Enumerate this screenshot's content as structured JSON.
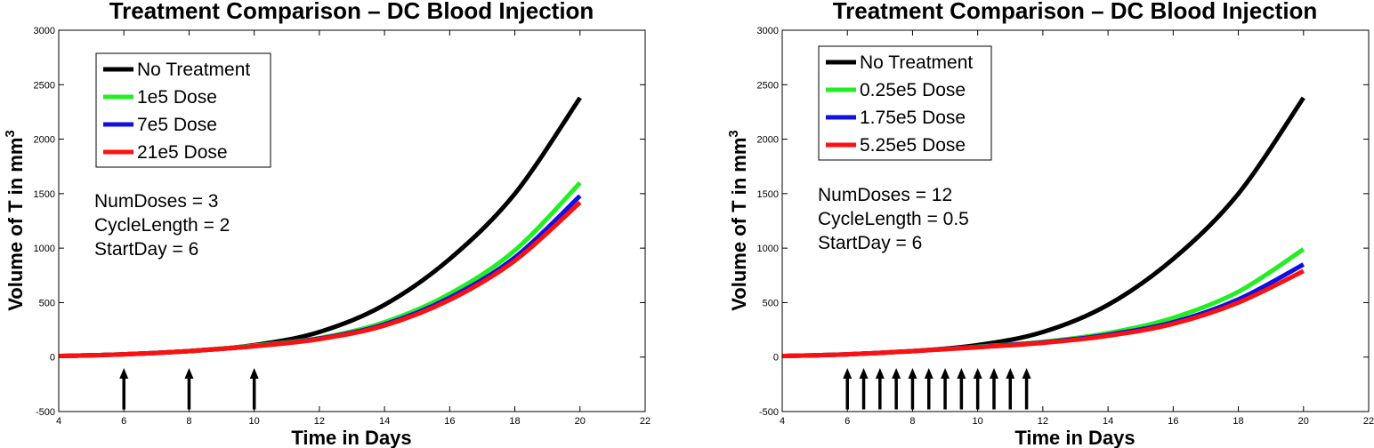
{
  "colors": {
    "black": "#000000",
    "green": "#22ee22",
    "blue": "#1010e0",
    "red": "#ff1010"
  },
  "chart_data": [
    {
      "type": "line",
      "title": "Treatment Comparison – DC Blood Injection",
      "xlabel": "Time in Days",
      "ylabel": "Volume of T in mm",
      "ylabel_superscript": "3",
      "xlim": [
        4,
        22
      ],
      "ylim": [
        -500,
        3000
      ],
      "xticks": [
        4,
        6,
        8,
        10,
        12,
        14,
        16,
        18,
        20,
        22
      ],
      "yticks": [
        -500,
        0,
        500,
        1000,
        1500,
        2000,
        2500,
        3000
      ],
      "legend_position": "top-left",
      "series": [
        {
          "name": "No Treatment",
          "color": "#000000",
          "x": [
            4,
            6,
            8,
            10,
            12,
            14,
            16,
            18,
            20
          ],
          "y": [
            10,
            25,
            55,
            110,
            230,
            480,
            900,
            1500,
            2380
          ]
        },
        {
          "name": "1e5 Dose",
          "color": "#22ee22",
          "x": [
            4,
            6,
            8,
            10,
            12,
            14,
            16,
            18,
            20
          ],
          "y": [
            10,
            25,
            55,
            105,
            175,
            320,
            580,
            980,
            1600
          ]
        },
        {
          "name": "7e5 Dose",
          "color": "#1010e0",
          "x": [
            4,
            6,
            8,
            10,
            12,
            14,
            16,
            18,
            20
          ],
          "y": [
            10,
            25,
            55,
            100,
            170,
            300,
            545,
            915,
            1480
          ]
        },
        {
          "name": "21e5 Dose",
          "color": "#ff1010",
          "x": [
            4,
            6,
            8,
            10,
            12,
            14,
            16,
            18,
            20
          ],
          "y": [
            10,
            25,
            55,
            100,
            165,
            290,
            525,
            885,
            1420
          ]
        }
      ],
      "annotations": [
        "NumDoses = 3",
        "CycleLength = 2",
        "StartDay = 6"
      ],
      "dose_days": [
        6,
        8,
        10
      ]
    },
    {
      "type": "line",
      "title": "Treatment Comparison – DC Blood Injection",
      "xlabel": "Time in Days",
      "ylabel": "Volume of T in mm",
      "ylabel_superscript": "3",
      "xlim": [
        4,
        22
      ],
      "ylim": [
        -500,
        3000
      ],
      "xticks": [
        4,
        6,
        8,
        10,
        12,
        14,
        16,
        18,
        20,
        22
      ],
      "yticks": [
        -500,
        0,
        500,
        1000,
        1500,
        2000,
        2500,
        3000
      ],
      "legend_position": "top-left",
      "series": [
        {
          "name": "No Treatment",
          "color": "#000000",
          "x": [
            4,
            6,
            8,
            10,
            12,
            14,
            16,
            18,
            20
          ],
          "y": [
            10,
            25,
            55,
            110,
            230,
            480,
            900,
            1500,
            2380
          ]
        },
        {
          "name": "0.25e5 Dose",
          "color": "#22ee22",
          "x": [
            4,
            6,
            8,
            10,
            12,
            14,
            16,
            18,
            20
          ],
          "y": [
            10,
            25,
            55,
            95,
            140,
            220,
            360,
            600,
            990
          ]
        },
        {
          "name": "1.75e5 Dose",
          "color": "#1010e0",
          "x": [
            4,
            6,
            8,
            10,
            12,
            14,
            16,
            18,
            20
          ],
          "y": [
            10,
            25,
            55,
            92,
            135,
            205,
            320,
            530,
            850
          ]
        },
        {
          "name": "5.25e5 Dose",
          "color": "#ff1010",
          "x": [
            4,
            6,
            8,
            10,
            12,
            14,
            16,
            18,
            20
          ],
          "y": [
            10,
            25,
            55,
            90,
            130,
            195,
            305,
            500,
            790
          ]
        }
      ],
      "annotations": [
        "NumDoses = 12",
        "CycleLength = 0.5",
        "StartDay = 6"
      ],
      "dose_days": [
        6,
        6.5,
        7,
        7.5,
        8,
        8.5,
        9,
        9.5,
        10,
        10.5,
        11,
        11.5
      ]
    }
  ]
}
